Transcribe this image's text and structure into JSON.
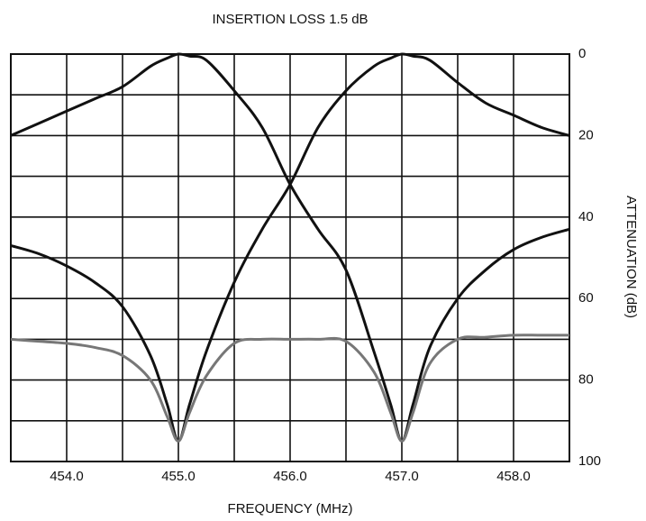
{
  "chart_data": {
    "type": "line",
    "title": "INSERTION LOSS  1.5 dB",
    "x_label": "FREQUENCY (MHz)",
    "y_label": "ATTENUATION (dB)",
    "y_axis_side": "right",
    "y_inverted": true,
    "grid": true,
    "xlim": [
      453.5,
      458.5
    ],
    "xticks": [
      {
        "value": 454,
        "label": "454.0"
      },
      {
        "value": 455,
        "label": "455.0"
      },
      {
        "value": 456,
        "label": "456.0"
      },
      {
        "value": 457,
        "label": "457.0"
      },
      {
        "value": 458,
        "label": "458.0"
      }
    ],
    "x_minor_ticks": [
      454.5,
      455.5,
      456.5,
      457.5
    ],
    "ylim": [
      0,
      100
    ],
    "yticks": [
      0,
      20,
      40,
      60,
      80,
      100
    ],
    "y_minor_ticks": [
      10,
      30,
      50,
      70,
      90
    ],
    "x": [
      453.5,
      453.75,
      454,
      454.25,
      454.5,
      454.75,
      454.9,
      455,
      455.1,
      455.25,
      455.5,
      455.75,
      456,
      456.25,
      456.5,
      456.75,
      456.9,
      457,
      457.1,
      457.25,
      457.5,
      457.75,
      458,
      458.25,
      458.5
    ],
    "series": [
      {
        "color": "#111111",
        "values": [
          20,
          17,
          14,
          11,
          8,
          3,
          1,
          0,
          0.5,
          1.5,
          9,
          18,
          32,
          43,
          53,
          73,
          86,
          95,
          86,
          72,
          60,
          53,
          48,
          45,
          43
        ]
      },
      {
        "color": "#111111",
        "values": [
          47,
          49,
          52,
          56,
          62,
          74,
          86,
          95,
          86,
          73,
          56,
          43,
          32,
          18,
          9,
          3,
          1,
          0,
          0.5,
          1.5,
          7,
          12,
          15,
          18,
          20
        ]
      },
      {
        "color": "#777777",
        "values": [
          70,
          70.5,
          71,
          72,
          74,
          80,
          89,
          95,
          88,
          79,
          71,
          70,
          70,
          70,
          70.5,
          78,
          88,
          95,
          88,
          76,
          70,
          69.5,
          69,
          69,
          69
        ]
      }
    ]
  }
}
